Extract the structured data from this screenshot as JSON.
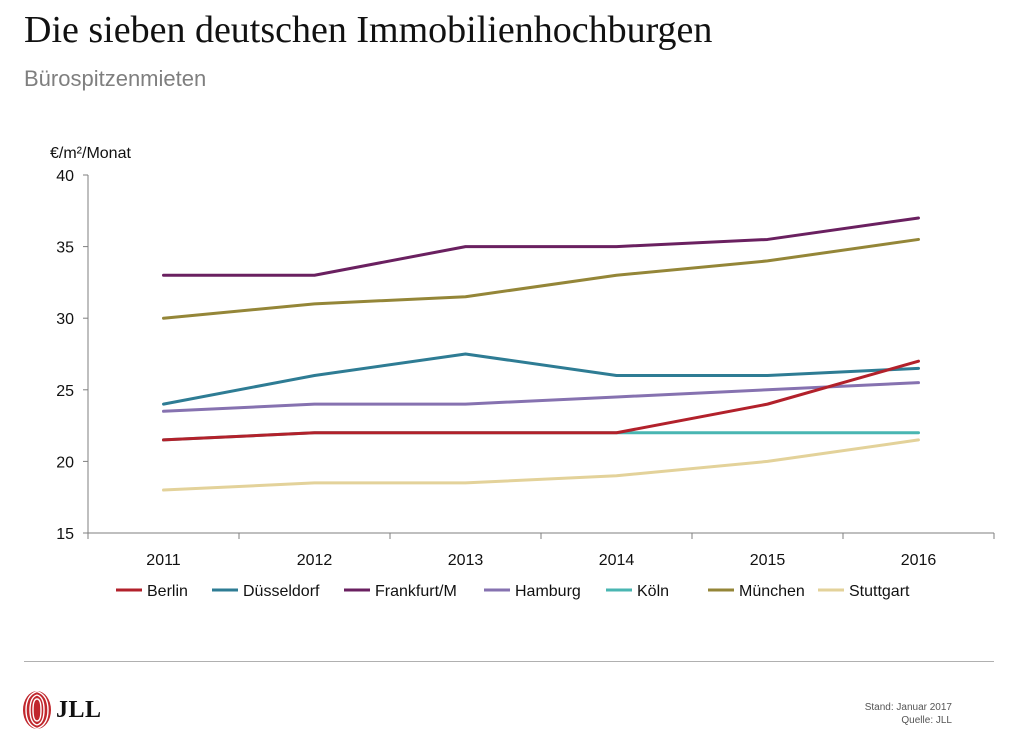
{
  "title": "Die sieben deutschen Immobilienhochburgen",
  "subtitle": "Bürospitzenmieten",
  "notes": {
    "stand": "Stand: Januar 2017",
    "quelle": "Quelle: JLL"
  },
  "logo": {
    "text": "JLL",
    "icon": "jll-stripes-icon"
  },
  "colors": {
    "Berlin": "#b2212b",
    "Düsseldorf": "#2e7c94",
    "Frankfurt/M": "#6a2060",
    "Hamburg": "#8672b0",
    "Köln": "#49b6b2",
    "München": "#948638",
    "Stuttgart": "#e3d29a"
  },
  "chart_data": {
    "type": "line",
    "ylabel": "€/m²/Monat",
    "xlabel": "",
    "ylim": [
      15,
      40
    ],
    "yticks": [
      15,
      20,
      25,
      30,
      35,
      40
    ],
    "categories": [
      "2011",
      "2012",
      "2013",
      "2014",
      "2015",
      "2016"
    ],
    "grid": false,
    "legend_position": "bottom",
    "series": [
      {
        "name": "Berlin",
        "values": [
          21.5,
          22,
          22,
          22,
          24,
          27
        ]
      },
      {
        "name": "Düsseldorf",
        "values": [
          24,
          26,
          27.5,
          26,
          26,
          26.5
        ]
      },
      {
        "name": "Frankfurt/M",
        "values": [
          33,
          33,
          35,
          35,
          35.5,
          37
        ]
      },
      {
        "name": "Hamburg",
        "values": [
          23.5,
          24,
          24,
          24.5,
          25,
          25.5
        ]
      },
      {
        "name": "Köln",
        "values": [
          21.5,
          22,
          22,
          22,
          22,
          22
        ]
      },
      {
        "name": "München",
        "values": [
          30,
          31,
          31.5,
          33,
          34,
          35.5
        ]
      },
      {
        "name": "Stuttgart",
        "values": [
          18,
          18.5,
          18.5,
          19,
          20,
          21.5
        ]
      }
    ]
  }
}
